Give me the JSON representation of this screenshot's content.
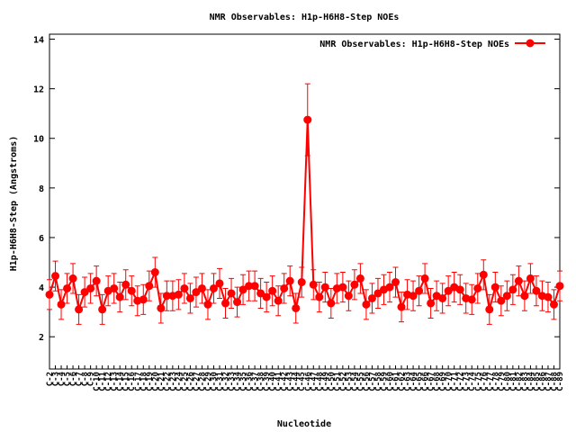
{
  "chart_data": {
    "type": "line",
    "title": "NMR Observables: H1p-H6H8-Step NOEs",
    "xlabel": "Nucleotide",
    "ylabel": "H1p-H6H8-Step (Angstroms)",
    "categories": [
      "C-2",
      "C-3",
      "C-4",
      "C-5",
      "C-6",
      "C-7",
      "C-8",
      "C-9",
      "C-10",
      "C-11",
      "C-12",
      "C-13",
      "C-14",
      "C-15",
      "C-16",
      "C-17",
      "C-18",
      "C-19",
      "C-20",
      "C-21",
      "C-22",
      "C-23",
      "C-24",
      "C-25",
      "C-26",
      "C-27",
      "C-28",
      "C-29",
      "C-30",
      "C-31",
      "C-32",
      "C-33",
      "C-34",
      "C-35",
      "C-36",
      "C-37",
      "C-38",
      "C-39",
      "C-40",
      "C-41",
      "C-42",
      "C-43",
      "C-44",
      "C-45",
      "C-46",
      "C-47",
      "C-48",
      "C-49",
      "C-50",
      "C-51",
      "C-52",
      "C-53",
      "C-54",
      "C-55",
      "C-56",
      "C-57",
      "C-58",
      "C-59",
      "C-60",
      "C-61",
      "C-62",
      "C-63",
      "C-64",
      "C-65",
      "C-66",
      "C-67",
      "C-68",
      "C-69",
      "C-70",
      "C-71",
      "C-72",
      "C-73",
      "C-74",
      "C-75",
      "C-76",
      "C-77",
      "C-78",
      "C-79",
      "C-80",
      "C-81",
      "C-82",
      "C-83",
      "C-84",
      "C-85",
      "C-86",
      "C-87",
      "C-88",
      "C-89"
    ],
    "series": [
      {
        "name": "NMR Observables: H1p-H6H8-Step NOEs",
        "color": "#ff0000",
        "values": [
          3.7,
          4.45,
          3.3,
          3.95,
          4.35,
          3.1,
          3.8,
          3.95,
          4.25,
          3.1,
          3.85,
          3.95,
          3.6,
          4.1,
          3.85,
          3.45,
          3.5,
          4.05,
          4.6,
          3.15,
          3.65,
          3.65,
          3.7,
          3.95,
          3.55,
          3.8,
          3.95,
          3.3,
          3.95,
          4.15,
          3.35,
          3.75,
          3.4,
          3.9,
          4.05,
          4.05,
          3.75,
          3.6,
          3.85,
          3.45,
          3.95,
          4.25,
          3.15,
          4.2,
          10.75,
          4.1,
          3.6,
          4.0,
          3.35,
          3.95,
          4.0,
          3.65,
          4.1,
          4.35,
          3.3,
          3.55,
          3.75,
          3.9,
          4.0,
          4.2,
          3.2,
          3.7,
          3.65,
          3.85,
          4.35,
          3.35,
          3.65,
          3.55,
          3.85,
          4.0,
          3.9,
          3.55,
          3.5,
          3.95,
          4.5,
          3.1,
          4.0,
          3.45,
          3.65,
          3.9,
          4.25,
          3.65,
          4.35,
          3.85,
          3.65,
          3.6,
          3.3,
          4.05
        ],
        "errors": [
          0.6,
          0.6,
          0.6,
          0.6,
          0.6,
          0.6,
          0.6,
          0.6,
          0.6,
          0.6,
          0.6,
          0.6,
          0.6,
          0.6,
          0.6,
          0.6,
          0.6,
          0.6,
          0.6,
          0.6,
          0.6,
          0.6,
          0.6,
          0.6,
          0.6,
          0.6,
          0.6,
          0.6,
          0.6,
          0.6,
          0.6,
          0.6,
          0.6,
          0.6,
          0.6,
          0.6,
          0.6,
          0.6,
          0.6,
          0.6,
          0.6,
          0.6,
          0.6,
          0.6,
          1.45,
          0.6,
          0.6,
          0.6,
          0.6,
          0.6,
          0.6,
          0.6,
          0.6,
          0.6,
          0.6,
          0.6,
          0.6,
          0.6,
          0.6,
          0.6,
          0.6,
          0.6,
          0.6,
          0.6,
          0.6,
          0.6,
          0.6,
          0.6,
          0.6,
          0.6,
          0.6,
          0.6,
          0.6,
          0.6,
          0.6,
          0.6,
          0.6,
          0.6,
          0.6,
          0.6,
          0.6,
          0.6,
          0.6,
          0.6,
          0.6,
          0.6,
          0.6,
          0.6
        ]
      }
    ],
    "ylim": [
      0.7,
      14.2
    ],
    "yticks": [
      2,
      4,
      6,
      8,
      10,
      12,
      14
    ],
    "legend": "top-right"
  }
}
